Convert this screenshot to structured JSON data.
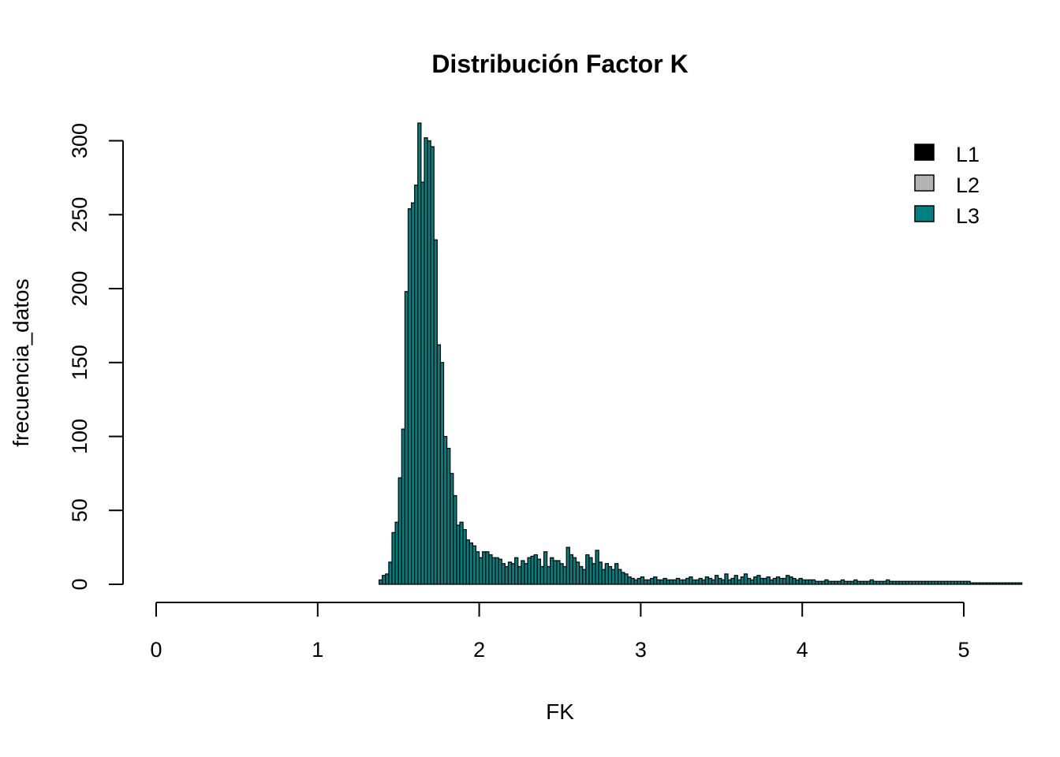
{
  "chart_data": {
    "type": "bar",
    "title": "Distribución Factor K",
    "xlabel": "FK",
    "ylabel": "frecuencia_datos",
    "xlim": [
      0,
      5
    ],
    "ylim": [
      0,
      312
    ],
    "x_ticks": [
      "0",
      "1",
      "2",
      "3",
      "4",
      "5"
    ],
    "y_ticks": [
      "0",
      "50",
      "100",
      "150",
      "200",
      "250",
      "300"
    ],
    "bin_start": 1.38,
    "bin_width": 0.02,
    "legend": {
      "position": "top-right"
    },
    "series": [
      {
        "name": "L1",
        "color": "#000000"
      },
      {
        "name": "L2",
        "color": "#b3b3b3"
      },
      {
        "name": "L3",
        "color": "#008080"
      }
    ],
    "values": [
      3,
      6,
      7,
      15,
      35,
      42,
      72,
      105,
      198,
      254,
      258,
      270,
      312,
      272,
      302,
      300,
      296,
      233,
      162,
      150,
      100,
      92,
      75,
      60,
      40,
      42,
      37,
      30,
      28,
      26,
      22,
      18,
      22,
      22,
      20,
      18,
      18,
      17,
      14,
      12,
      15,
      14,
      18,
      12,
      16,
      14,
      18,
      19,
      20,
      17,
      12,
      22,
      12,
      18,
      16,
      16,
      14,
      12,
      25,
      20,
      18,
      15,
      12,
      10,
      20,
      18,
      14,
      23,
      15,
      10,
      14,
      12,
      10,
      14,
      10,
      8,
      7,
      5,
      4,
      3,
      4,
      5,
      3,
      3,
      4,
      5,
      3,
      3,
      4,
      3,
      3,
      3,
      4,
      3,
      3,
      4,
      5,
      3,
      3,
      4,
      3,
      5,
      4,
      3,
      6,
      4,
      3,
      7,
      3,
      4,
      6,
      3,
      5,
      7,
      4,
      3,
      5,
      6,
      4,
      4,
      5,
      3,
      4,
      5,
      4,
      4,
      6,
      5,
      4,
      3,
      4,
      3,
      3,
      3,
      3,
      2,
      2,
      2,
      3,
      2,
      2,
      2,
      2,
      3,
      2,
      2,
      2,
      3,
      2,
      2,
      2,
      2,
      3,
      2,
      2,
      2,
      2,
      3,
      2,
      2,
      2,
      2,
      2,
      2,
      2,
      2,
      2,
      2,
      2,
      2,
      2,
      2,
      2,
      2,
      2,
      2,
      2,
      2,
      2,
      2,
      2,
      2,
      2,
      1,
      1,
      1,
      1,
      1,
      1,
      1,
      1,
      1,
      1,
      1,
      1,
      1,
      1,
      1,
      1
    ]
  }
}
